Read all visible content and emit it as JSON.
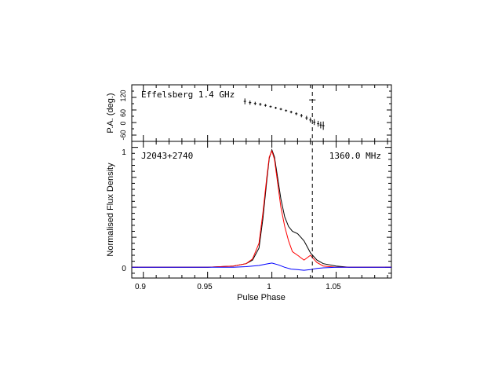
{
  "chart_data": [
    {
      "type": "scatter",
      "panel": "top",
      "annotation": "Effelsberg 1.4 GHz",
      "ylabel": "P.A. (deg.)",
      "y_ticks": [
        "120",
        "60",
        "0",
        "-60"
      ],
      "ylim": [
        -90,
        180
      ],
      "xlim": [
        0.891,
        1.093
      ],
      "grid": false,
      "series": [
        {
          "color": "#000000",
          "x": [
            0.979,
            0.983,
            0.987,
            0.991,
            0.995,
            0.999,
            1.003,
            1.007,
            1.011,
            1.015,
            1.019,
            1.023,
            1.027,
            1.03,
            1.033,
            1.036,
            1.038,
            1.04
          ],
          "y": [
            101,
            95,
            91,
            87,
            82,
            76,
            70,
            64,
            57,
            50,
            42,
            33,
            22,
            12,
            2,
            -6,
            -12,
            -15
          ],
          "yerr": [
            14,
            10,
            8,
            7,
            6,
            5,
            5,
            5,
            5,
            6,
            7,
            8,
            10,
            12,
            14,
            14,
            16,
            20
          ]
        }
      ],
      "cross_marker": {
        "x": 1.0315,
        "y": 108,
        "xerr": 0.0025,
        "yerr": 4
      }
    },
    {
      "type": "line",
      "panel": "bottom",
      "xlabel": "Pulse Phase",
      "ylabel": "Normalised Flux Density",
      "x_ticks": [
        "0.9",
        "0.95",
        "1",
        "1.05"
      ],
      "x_tick_values": [
        0.9,
        0.95,
        1.0,
        1.05
      ],
      "y_ticks": [
        "1",
        "0"
      ],
      "y_tick_values": [
        1,
        0
      ],
      "xlim": [
        0.891,
        1.093
      ],
      "ylim": [
        -0.09,
        1.05
      ],
      "left_label": "J2043+2740",
      "right_label": "1360.0 MHz",
      "vline_x": 1.0315,
      "grid": false,
      "series": [
        {
          "color": "#000000",
          "x": [
            0.891,
            0.92,
            0.95,
            0.97,
            0.98,
            0.985,
            0.99,
            0.993,
            0.996,
            0.998,
            1.0,
            1.002,
            1.004,
            1.007,
            1.01,
            1.013,
            1.016,
            1.02,
            1.025,
            1.03,
            1.035,
            1.04,
            1.05,
            1.06,
            1.08,
            1.093
          ],
          "y": [
            0.0,
            0.0,
            0.0,
            0.01,
            0.03,
            0.06,
            0.16,
            0.4,
            0.72,
            0.91,
            0.98,
            0.92,
            0.78,
            0.57,
            0.42,
            0.34,
            0.3,
            0.28,
            0.22,
            0.12,
            0.06,
            0.03,
            0.01,
            0.0,
            0.0,
            0.0
          ]
        },
        {
          "color": "#ff0000",
          "x": [
            0.891,
            0.92,
            0.95,
            0.97,
            0.98,
            0.985,
            0.99,
            0.993,
            0.996,
            0.998,
            1.0,
            1.002,
            1.004,
            1.007,
            1.01,
            1.013,
            1.016,
            1.02,
            1.025,
            1.03,
            1.035,
            1.04,
            1.05,
            1.06,
            1.08,
            1.093
          ],
          "y": [
            0.0,
            0.0,
            0.0,
            0.01,
            0.03,
            0.07,
            0.2,
            0.45,
            0.75,
            0.92,
            0.97,
            0.9,
            0.74,
            0.5,
            0.34,
            0.22,
            0.13,
            0.1,
            0.06,
            0.1,
            0.04,
            0.01,
            0.0,
            0.0,
            0.0,
            0.0
          ]
        },
        {
          "color": "#0000ff",
          "x": [
            0.891,
            0.92,
            0.95,
            0.97,
            0.98,
            0.99,
            0.995,
            1.0,
            1.005,
            1.01,
            1.015,
            1.02,
            1.025,
            1.03,
            1.035,
            1.04,
            1.05,
            1.06,
            1.08,
            1.093
          ],
          "y": [
            0.0,
            0.0,
            0.0,
            0.0,
            0.005,
            0.015,
            0.025,
            0.035,
            0.02,
            0.0,
            -0.015,
            -0.02,
            -0.025,
            -0.02,
            -0.01,
            -0.005,
            0.0,
            0.0,
            0.0,
            0.0
          ]
        }
      ]
    }
  ]
}
